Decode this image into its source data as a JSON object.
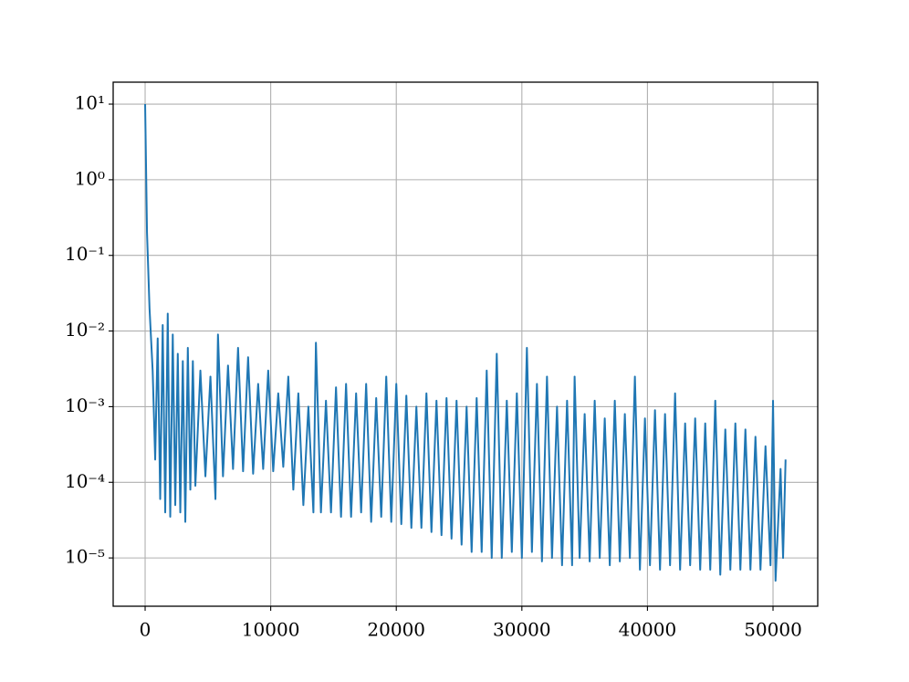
{
  "chart_data": {
    "type": "line",
    "x": [
      0,
      150,
      350,
      600,
      800,
      1000,
      1200,
      1400,
      1600,
      1800,
      2000,
      2200,
      2400,
      2600,
      2800,
      3000,
      3200,
      3400,
      3600,
      3800,
      4000,
      4400,
      4800,
      5200,
      5600,
      5800,
      6200,
      6600,
      7000,
      7400,
      7800,
      8200,
      8600,
      9000,
      9400,
      9800,
      10200,
      10600,
      11000,
      11400,
      11800,
      12200,
      12600,
      13000,
      13400,
      13600,
      14000,
      14400,
      14800,
      15200,
      15600,
      16000,
      16400,
      16800,
      17200,
      17600,
      18000,
      18400,
      18800,
      19200,
      19600,
      20000,
      20400,
      20800,
      21200,
      21600,
      22000,
      22400,
      22800,
      23200,
      23600,
      24000,
      24400,
      24800,
      25200,
      25600,
      26000,
      26400,
      26800,
      27200,
      27600,
      28000,
      28400,
      28800,
      29200,
      29600,
      30000,
      30400,
      30800,
      31200,
      31600,
      32000,
      32400,
      32800,
      33200,
      33600,
      34000,
      34200,
      34600,
      35000,
      35400,
      35800,
      36200,
      36600,
      37000,
      37400,
      37800,
      38200,
      38600,
      39000,
      39400,
      39800,
      40200,
      40600,
      41000,
      41400,
      41800,
      42200,
      42600,
      43000,
      43400,
      43800,
      44200,
      44600,
      45000,
      45400,
      45800,
      46200,
      46600,
      47000,
      47400,
      47800,
      48200,
      48600,
      49000,
      49400,
      49800,
      50000,
      50200,
      50600,
      50800,
      51000
    ],
    "series": [
      {
        "color": "#1f77b4",
        "values": [
          10,
          0.2,
          0.02,
          0.003,
          0.0002,
          0.008,
          6e-05,
          0.012,
          4e-05,
          0.017,
          3.5e-05,
          0.009,
          5e-05,
          0.005,
          4e-05,
          0.004,
          3e-05,
          0.006,
          8e-05,
          0.004,
          9e-05,
          0.003,
          0.00012,
          0.0025,
          6e-05,
          0.009,
          0.00012,
          0.0035,
          0.00015,
          0.006,
          0.00014,
          0.0045,
          0.00013,
          0.002,
          0.00015,
          0.003,
          0.00014,
          0.0015,
          0.00016,
          0.0025,
          8e-05,
          0.0015,
          5e-05,
          0.001,
          4e-05,
          0.007,
          4e-05,
          0.0012,
          4e-05,
          0.0018,
          3.5e-05,
          0.002,
          3.5e-05,
          0.0015,
          4e-05,
          0.002,
          3e-05,
          0.0013,
          3.5e-05,
          0.0025,
          3e-05,
          0.002,
          2.8e-05,
          0.0014,
          2.5e-05,
          0.001,
          2.5e-05,
          0.0015,
          2.2e-05,
          0.0012,
          2e-05,
          0.0013,
          1.8e-05,
          0.0012,
          1.5e-05,
          0.001,
          1.2e-05,
          0.0013,
          1.2e-05,
          0.003,
          1e-05,
          0.005,
          1e-05,
          0.0012,
          1.2e-05,
          0.0015,
          1e-05,
          0.006,
          1.2e-05,
          0.002,
          9e-06,
          0.0025,
          1e-05,
          0.001,
          8e-06,
          0.0012,
          8e-06,
          0.0025,
          1e-05,
          0.0008,
          9e-06,
          0.0012,
          1e-05,
          0.0007,
          8e-06,
          0.0012,
          9e-06,
          0.0008,
          1e-05,
          0.0025,
          7e-06,
          0.0007,
          8e-06,
          0.0009,
          7e-06,
          0.0008,
          8e-06,
          0.0015,
          7e-06,
          0.0006,
          8e-06,
          0.0007,
          7e-06,
          0.0006,
          7e-06,
          0.0012,
          6e-06,
          0.0005,
          7e-06,
          0.0006,
          7e-06,
          0.0005,
          7e-06,
          0.0004,
          7e-06,
          0.0003,
          8e-06,
          0.0012,
          5e-06,
          0.00015,
          1e-05,
          0.0002
        ]
      }
    ],
    "xlim": [
      -2545,
      53560
    ],
    "xticks": [
      0,
      10000,
      20000,
      30000,
      40000,
      50000
    ],
    "ylim": [
      2.3e-06,
      19.5
    ],
    "log_y": true,
    "yticks": [
      {
        "value": 1e-05,
        "label": "10⁻⁵"
      },
      {
        "value": 0.0001,
        "label": "10⁻⁴"
      },
      {
        "value": 0.001,
        "label": "10⁻³"
      },
      {
        "value": 0.01,
        "label": "10⁻²"
      },
      {
        "value": 0.1,
        "label": "10⁻¹"
      },
      {
        "value": 1,
        "label": "10⁰"
      },
      {
        "value": 10,
        "label": "10¹"
      }
    ],
    "grid": true
  }
}
